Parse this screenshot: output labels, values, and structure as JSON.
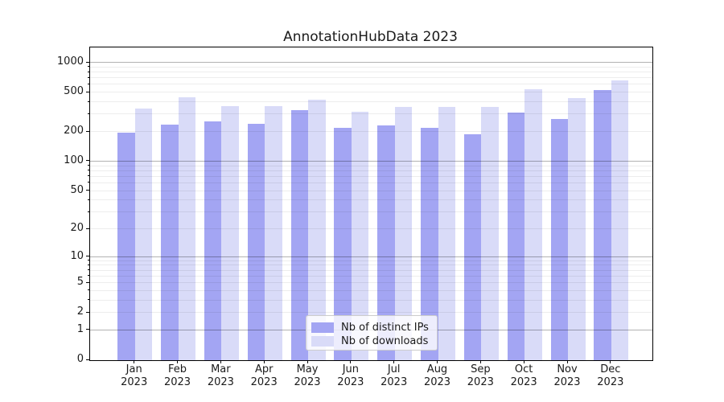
{
  "title": "AnnotationHubData 2023",
  "colors": {
    "distinct_ips": "#a3a5f3",
    "downloads": "#d9dbf8",
    "major_grid": "rgba(0,0,0,0.30)",
    "minor_grid": "rgba(0,0,0,0.07)",
    "axis": "#000000",
    "text": "#1a1a1a"
  },
  "legend": {
    "items": [
      {
        "label": "Nb of distinct IPs",
        "color_key": "distinct_ips"
      },
      {
        "label": "Nb of downloads",
        "color_key": "downloads"
      }
    ]
  },
  "chart_data": {
    "type": "bar",
    "title": "AnnotationHubData 2023",
    "categories": [
      "Jan 2023",
      "Feb 2023",
      "Mar 2023",
      "Apr 2023",
      "May 2023",
      "Jun 2023",
      "Jul 2023",
      "Aug 2023",
      "Sep 2023",
      "Oct 2023",
      "Nov 2023",
      "Dec 2023"
    ],
    "series": [
      {
        "name": "Nb of distinct IPs",
        "values": [
          196,
          238,
          257,
          241,
          333,
          219,
          235,
          222,
          191,
          312,
          270,
          532
        ]
      },
      {
        "name": "Nb of downloads",
        "values": [
          344,
          452,
          365,
          363,
          425,
          318,
          358,
          360,
          358,
          540,
          438,
          663
        ]
      }
    ],
    "xlabel": "",
    "ylabel": "",
    "yscale": "log1p",
    "ylim": [
      0,
      1430
    ],
    "y_ticks": [
      0,
      1,
      2,
      5,
      10,
      20,
      50,
      100,
      200,
      500,
      1000
    ],
    "grid": "horizontal, major lines at 1/10/100/1000, minor lines at 2-9 per decade",
    "legend_position": "lower center"
  }
}
